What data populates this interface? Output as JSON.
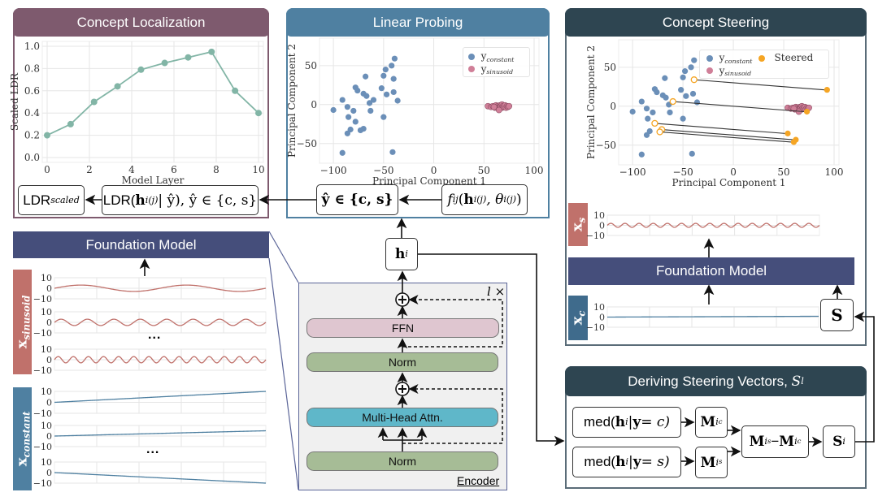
{
  "colors": {
    "localization": "#7e5a6e",
    "probing": "#4f80a1",
    "steering": "#2e4551",
    "foundation": "#454e7b",
    "sinusoid": "#c0716b",
    "constant": "#4f80a1",
    "orange": "#f5a524",
    "pink": "#d07f98",
    "blue": "#6b8fb8",
    "ffn": "#dfc6d0",
    "norm": "#a6bc96",
    "mha": "#5fb7c9"
  },
  "localization": {
    "title": "Concept Localization",
    "ldr_scaled": {
      "main": "LDR",
      "sub": "scaled"
    },
    "ldr_formula": {
      "prefix": "LDR(",
      "h": "h",
      "sub": "i",
      "sup": "(j)",
      "suffix": " | ŷ), ŷ ∈ {c, s}"
    }
  },
  "probing": {
    "title": "Linear Probing",
    "yhat": "ŷ ∈ {c, s}",
    "probe": {
      "f": "f",
      "fsub": "ij",
      "open": "(",
      "h": "h",
      "hsub": "i",
      "hsup": "(j)",
      "comma": ", θ",
      "tsub": "i",
      "tsup": "(j)",
      "close": ")"
    },
    "legend": {
      "constant": {
        "y": "y",
        "sub": "constant"
      },
      "sinusoid": {
        "y": "y",
        "sub": "sinusoid"
      }
    }
  },
  "steering": {
    "title": "Concept Steering",
    "legend": {
      "constant": {
        "y": "y",
        "sub": "constant"
      },
      "sinusoid": {
        "y": "y",
        "sub": "sinusoid"
      },
      "steered": "Steered"
    },
    "xs_label": {
      "x": "x",
      "sub": "s"
    },
    "xc_label": {
      "x": "x",
      "sub": "c"
    },
    "foundation": "Foundation Model",
    "s_box": "S"
  },
  "left": {
    "foundation": "Foundation Model",
    "sinusoid_label": {
      "x": "x",
      "sub": "sinusoid"
    },
    "constant_label": {
      "x": "x",
      "sub": "constant"
    },
    "ellipsis": "..."
  },
  "encoder": {
    "repeat": "l ×",
    "ffn": "FFN",
    "norm1": "Norm",
    "mha": "Multi-Head Attn.",
    "norm2": "Norm",
    "label": "Encoder",
    "plus": "+",
    "h": "h",
    "hsub": "i"
  },
  "deriving": {
    "title": "Deriving Steering Vectors, ",
    "title_var": "S",
    "title_sub": "l",
    "med_c": {
      "pre": "med(",
      "h": "h",
      "sub": "i",
      "mid": " | ",
      "y": "y",
      "post": " = c)"
    },
    "med_s": {
      "pre": "med(",
      "h": "h",
      "sub": "i",
      "mid": " | ",
      "y": "y",
      "post": " = s)"
    },
    "m_ic": {
      "M": "M",
      "sub": "i",
      "subsub": "c"
    },
    "m_is": {
      "M": "M",
      "sub": "i",
      "subsub": "s"
    },
    "diff": {
      "M1": "M",
      "s1": "i",
      "ss1": "s",
      "minus": " − ",
      "M2": "M",
      "s2": "i",
      "ss2": "c"
    },
    "s_i": {
      "S": "S",
      "sub": "i"
    }
  },
  "chart_data": [
    {
      "id": "ldr",
      "type": "line",
      "xlabel": "Model Layer",
      "ylabel": "Scaled LDR",
      "xlim": [
        0,
        10
      ],
      "ylim": [
        0,
        1
      ],
      "xticks": [
        0,
        2,
        4,
        6,
        8,
        10
      ],
      "yticks": [
        0.0,
        0.2,
        0.4,
        0.6,
        0.8,
        1.0
      ],
      "grid": true,
      "color": "#82b5a6",
      "x": [
        0,
        1.11,
        2.22,
        3.33,
        4.44,
        5.56,
        6.67,
        7.78,
        8.89,
        10
      ],
      "y": [
        0.2,
        0.3,
        0.5,
        0.64,
        0.79,
        0.85,
        0.9,
        0.95,
        0.6,
        0.4
      ]
    },
    {
      "id": "probe",
      "type": "scatter",
      "xlabel": "Principal Component 1",
      "ylabel": "Principal Component 2",
      "xlim": [
        -109,
        100
      ],
      "ylim": [
        -69,
        79
      ],
      "xticks": [
        -100,
        -50,
        0,
        50,
        100
      ],
      "yticks": [
        -50,
        0,
        50
      ],
      "grid": true,
      "legend": "top-right",
      "series": [
        {
          "name": "y_constant",
          "color": "#6b8fb8",
          "points": [
            [
              -39,
              59
            ],
            [
              -42,
              50
            ],
            [
              -48,
              45
            ],
            [
              -50,
              37
            ],
            [
              -40,
              33
            ],
            [
              -68,
              36
            ],
            [
              -78,
              22
            ],
            [
              -76,
              18
            ],
            [
              -52,
              21
            ],
            [
              -70,
              14
            ],
            [
              -67,
              11
            ],
            [
              -47,
              13
            ],
            [
              -40,
              16
            ],
            [
              -60,
              6
            ],
            [
              -64,
              2
            ],
            [
              -36,
              5
            ],
            [
              -91,
              6
            ],
            [
              -100,
              -7
            ],
            [
              -86,
              -3
            ],
            [
              -80,
              -8
            ],
            [
              -63,
              -8
            ],
            [
              -85,
              -16
            ],
            [
              -78,
              -22
            ],
            [
              -50,
              -16
            ],
            [
              -70,
              -31
            ],
            [
              -73,
              -33
            ],
            [
              -83,
              -32
            ],
            [
              -86,
              -37
            ],
            [
              -91,
              -62
            ],
            [
              -41,
              -61
            ]
          ]
        },
        {
          "name": "y_sinusoid",
          "color": "#d07f98",
          "points": [
            [
              54,
              -2
            ],
            [
              57,
              -3
            ],
            [
              59,
              -2
            ],
            [
              61,
              -4
            ],
            [
              62,
              -1
            ],
            [
              63,
              -3
            ],
            [
              64,
              -2
            ],
            [
              65,
              -5
            ],
            [
              66,
              -1
            ],
            [
              66,
              -3
            ],
            [
              67,
              -2
            ],
            [
              68,
              0
            ],
            [
              68,
              -4
            ],
            [
              69,
              -2
            ],
            [
              70,
              -3
            ],
            [
              71,
              -1
            ],
            [
              72,
              -4
            ],
            [
              73,
              -2
            ],
            [
              74,
              -3
            ],
            [
              75,
              -2
            ],
            [
              65,
              -7
            ],
            [
              60,
              -3
            ]
          ]
        }
      ]
    },
    {
      "id": "steer",
      "type": "scatter",
      "xlabel": "Principal Component 1",
      "ylabel": "Principal Component 2",
      "xlim": [
        -109,
        100
      ],
      "ylim": [
        -69,
        79
      ],
      "xticks": [
        -100,
        -50,
        0,
        50,
        100
      ],
      "yticks": [
        -50,
        0,
        50
      ],
      "grid": true,
      "legend": "top-right",
      "series": [
        {
          "name": "y_constant",
          "color": "#6b8fb8",
          "points": [
            [
              -39,
              59
            ],
            [
              -42,
              50
            ],
            [
              -48,
              45
            ],
            [
              -50,
              37
            ],
            [
              -68,
              36
            ],
            [
              -78,
              22
            ],
            [
              -76,
              18
            ],
            [
              -52,
              21
            ],
            [
              -70,
              14
            ],
            [
              -67,
              11
            ],
            [
              -47,
              13
            ],
            [
              -40,
              16
            ],
            [
              -64,
              2
            ],
            [
              -36,
              5
            ],
            [
              -91,
              6
            ],
            [
              -100,
              -7
            ],
            [
              -86,
              -3
            ],
            [
              -80,
              -8
            ],
            [
              -63,
              -8
            ],
            [
              -85,
              -16
            ],
            [
              -50,
              -16
            ],
            [
              -83,
              -32
            ],
            [
              -86,
              -37
            ],
            [
              -91,
              -62
            ],
            [
              -41,
              -61
            ]
          ]
        },
        {
          "name": "y_sinusoid",
          "color": "#d07f98",
          "points": [
            [
              54,
              -2
            ],
            [
              57,
              -3
            ],
            [
              59,
              -2
            ],
            [
              61,
              -4
            ],
            [
              62,
              -1
            ],
            [
              63,
              -3
            ],
            [
              64,
              -2
            ],
            [
              65,
              -5
            ],
            [
              66,
              -1
            ],
            [
              66,
              -3
            ],
            [
              67,
              -2
            ],
            [
              68,
              0
            ],
            [
              68,
              -4
            ],
            [
              69,
              -2
            ],
            [
              70,
              -3
            ],
            [
              71,
              -1
            ],
            [
              72,
              -4
            ],
            [
              73,
              -2
            ],
            [
              74,
              -3
            ],
            [
              75,
              -2
            ],
            [
              65,
              -7
            ],
            [
              60,
              -3
            ]
          ]
        },
        {
          "name": "Steered",
          "color": "#f5a524",
          "from": [
            [
              -39,
              34
            ],
            [
              -60,
              6
            ],
            [
              -78,
              -22
            ],
            [
              -71,
              -30
            ],
            [
              -73,
              -33
            ]
          ],
          "points": [
            [
              93,
              21
            ],
            [
              73,
              -7
            ],
            [
              54,
              -35
            ],
            [
              62,
              -43
            ],
            [
              60,
              -46
            ]
          ]
        }
      ]
    },
    {
      "id": "sin1",
      "type": "line",
      "kind": "sinusoid",
      "amplitude": 3,
      "cycles": 2,
      "ylim": [
        -10,
        10
      ],
      "yticks": [
        10,
        0,
        -10
      ],
      "color": "#c0716b"
    },
    {
      "id": "sin2",
      "type": "line",
      "kind": "sinusoid",
      "amplitude": 3,
      "cycles": 8,
      "ylim": [
        -10,
        10
      ],
      "yticks": [
        10,
        0,
        -10
      ],
      "color": "#c0716b"
    },
    {
      "id": "sin3",
      "type": "line",
      "kind": "sinusoid",
      "amplitude": 3,
      "cycles": 14,
      "ylim": [
        -10,
        10
      ],
      "yticks": [
        10,
        0,
        -10
      ],
      "color": "#c0716b"
    },
    {
      "id": "con1",
      "type": "line",
      "kind": "linear",
      "start": 0,
      "end": 10,
      "ylim": [
        -10,
        10
      ],
      "yticks": [
        10,
        0,
        -10
      ],
      "color": "#4f80a1"
    },
    {
      "id": "con2",
      "type": "line",
      "kind": "linear",
      "start": 0,
      "end": 5,
      "ylim": [
        -10,
        10
      ],
      "yticks": [
        10,
        0,
        -10
      ],
      "color": "#4f80a1"
    },
    {
      "id": "con3",
      "type": "line",
      "kind": "linear",
      "start": 0,
      "end": -10,
      "ylim": [
        -10,
        10
      ],
      "yticks": [
        10,
        0,
        -10
      ],
      "color": "#4f80a1"
    },
    {
      "id": "xs",
      "type": "line",
      "kind": "sinusoid",
      "amplitude": 2,
      "cycles": 15,
      "ylim": [
        -10,
        10
      ],
      "yticks": [
        10,
        0,
        -10
      ],
      "color": "#c0716b"
    },
    {
      "id": "xc",
      "type": "line",
      "kind": "linear",
      "start": 0,
      "end": 0.8,
      "ylim": [
        -10,
        10
      ],
      "yticks": [
        10,
        0,
        -10
      ],
      "color": "#4f80a1"
    }
  ]
}
